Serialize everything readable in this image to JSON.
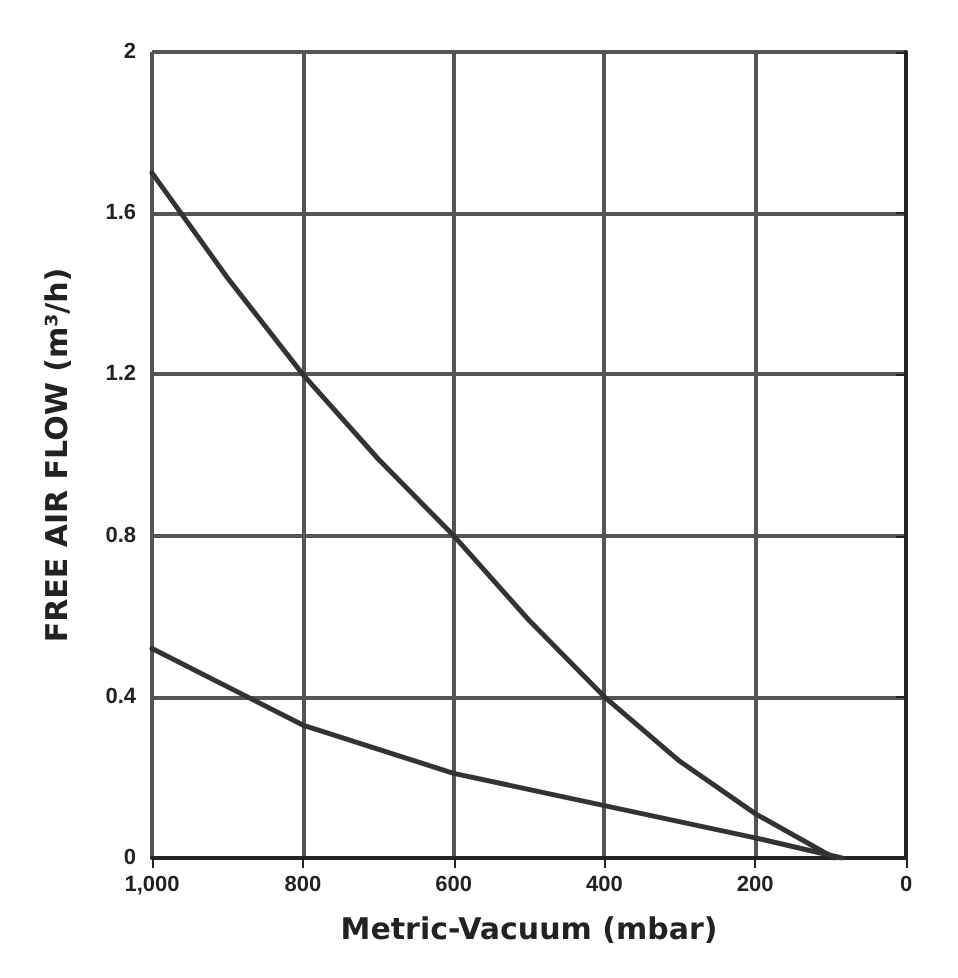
{
  "chart_data": {
    "type": "line",
    "xlabel": "Metric-Vacuum (mbar)",
    "ylabel": "FREE AIR FLOW (m³/h)",
    "xlim": [
      1000,
      0
    ],
    "xticks": [
      {
        "value": 1000,
        "label": "1,000"
      },
      800,
      600,
      400,
      200,
      0
    ],
    "ylim": [
      0,
      2
    ],
    "yticks": [
      0,
      0.4,
      0.8,
      1.2,
      1.6,
      2
    ],
    "grid": true,
    "marker": "none",
    "line_style": "solid",
    "series": [
      {
        "color": "#333333",
        "x": [
          1000,
          900,
          800,
          700,
          600,
          500,
          400,
          300,
          200,
          95
        ],
        "values": [
          1.7,
          1.44,
          1.2,
          0.99,
          0.8,
          0.59,
          0.4,
          0.24,
          0.11,
          0
        ]
      },
      {
        "color": "#333333",
        "x": [
          1000,
          800,
          600,
          400,
          200,
          85
        ],
        "values": [
          0.52,
          0.33,
          0.21,
          0.13,
          0.05,
          0
        ]
      }
    ]
  }
}
